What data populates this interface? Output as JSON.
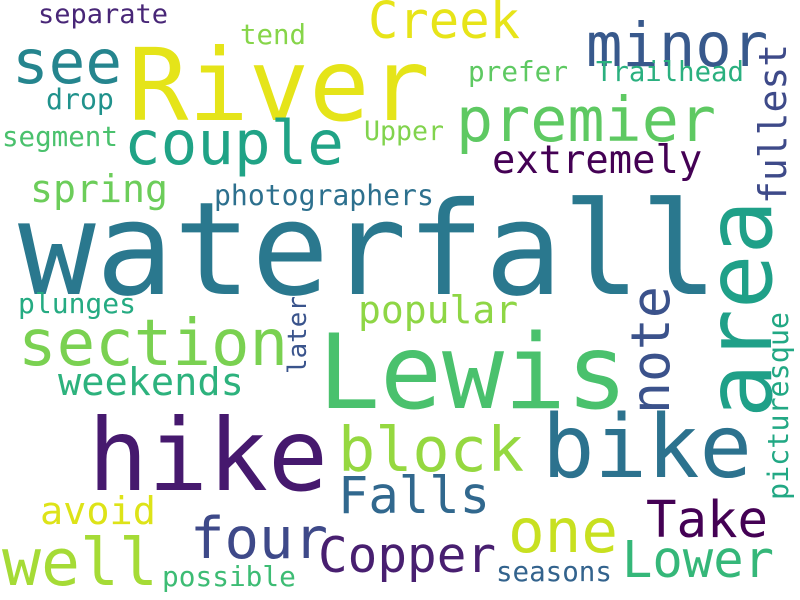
{
  "words": [
    {
      "text": "waterfall",
      "color": "#2a788e",
      "vertical": false
    },
    {
      "text": "River",
      "color": "#e5e419",
      "vertical": false
    },
    {
      "text": "Lewis",
      "color": "#4ac16d",
      "vertical": false
    },
    {
      "text": "hike",
      "color": "#46196e",
      "vertical": false
    },
    {
      "text": "bike",
      "color": "#2c728e",
      "vertical": false
    },
    {
      "text": "area",
      "color": "#1fa088",
      "vertical": true
    },
    {
      "text": "minor",
      "color": "#38598c",
      "vertical": false
    },
    {
      "text": "see",
      "color": "#25858e",
      "vertical": false
    },
    {
      "text": "Creek",
      "color": "#e7e419",
      "vertical": false
    },
    {
      "text": "couple",
      "color": "#20a386",
      "vertical": false
    },
    {
      "text": "premier",
      "color": "#5ec962",
      "vertical": false
    },
    {
      "text": "section",
      "color": "#7ad151",
      "vertical": false
    },
    {
      "text": "block",
      "color": "#95d840",
      "vertical": false
    },
    {
      "text": "note",
      "color": "#3b528b",
      "vertical": true
    },
    {
      "text": "four",
      "color": "#3e4989",
      "vertical": false
    },
    {
      "text": "one",
      "color": "#c8e020",
      "vertical": false
    },
    {
      "text": "well",
      "color": "#a5db36",
      "vertical": false
    },
    {
      "text": "Copper",
      "color": "#481f70",
      "vertical": false
    },
    {
      "text": "Falls",
      "color": "#31688e",
      "vertical": false
    },
    {
      "text": "Take",
      "color": "#440154",
      "vertical": false
    },
    {
      "text": "Lower",
      "color": "#35b779",
      "vertical": false
    },
    {
      "text": "extremely",
      "color": "#440154",
      "vertical": false
    },
    {
      "text": "fullest",
      "color": "#3e4a89",
      "vertical": true
    },
    {
      "text": "spring",
      "color": "#6ccd5a",
      "vertical": false
    },
    {
      "text": "popular",
      "color": "#8ed645",
      "vertical": false
    },
    {
      "text": "weekends",
      "color": "#2db27d",
      "vertical": false
    },
    {
      "text": "avoid",
      "color": "#dde318",
      "vertical": false
    },
    {
      "text": "photographers",
      "color": "#2d708e",
      "vertical": false
    },
    {
      "text": "Trailhead",
      "color": "#2ab07f",
      "vertical": false
    },
    {
      "text": "prefer",
      "color": "#5ec962",
      "vertical": false
    },
    {
      "text": "Upper",
      "color": "#81d34d",
      "vertical": false
    },
    {
      "text": "separate",
      "color": "#482677",
      "vertical": false
    },
    {
      "text": "tend",
      "color": "#86d549",
      "vertical": false
    },
    {
      "text": "drop",
      "color": "#20928c",
      "vertical": false
    },
    {
      "text": "segment",
      "color": "#4ac16d",
      "vertical": false
    },
    {
      "text": "plunges",
      "color": "#25ab82",
      "vertical": false
    },
    {
      "text": "later",
      "color": "#3a548c",
      "vertical": true
    },
    {
      "text": "picturesque",
      "color": "#22a884",
      "vertical": true
    },
    {
      "text": "possible",
      "color": "#3dbc74",
      "vertical": false
    },
    {
      "text": "seasons",
      "color": "#33638d",
      "vertical": false
    }
  ]
}
